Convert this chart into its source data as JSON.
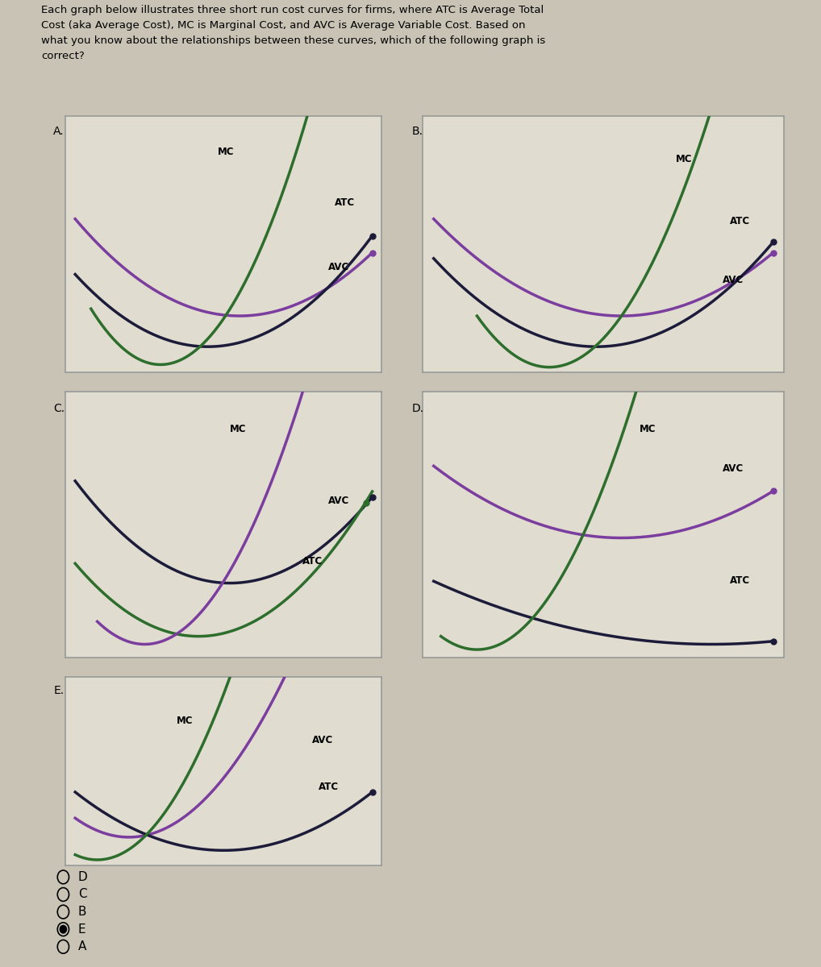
{
  "title_text": "Each graph below illustrates three short run cost curves for firms, where ATC is Average Total\nCost (aka Average Cost), MC is Marginal Cost, and AVC is Average Variable Cost. Based on\nwhat you know about the relationships between these curves, which of the following graph is\ncorrect?",
  "bg_color": "#c8c3b5",
  "panel_bg": "#e0dcd0",
  "panel_border": "#999999",
  "mc_color": "#2d6e2d",
  "atc_color": "#7b3d9e",
  "avc_color": "#1c1c3a",
  "radio_options": [
    "D",
    "C",
    "B",
    "E",
    "A"
  ],
  "radio_selected": "E",
  "panel_labels": [
    "A.",
    "B.",
    "C.",
    "D.",
    "E."
  ]
}
